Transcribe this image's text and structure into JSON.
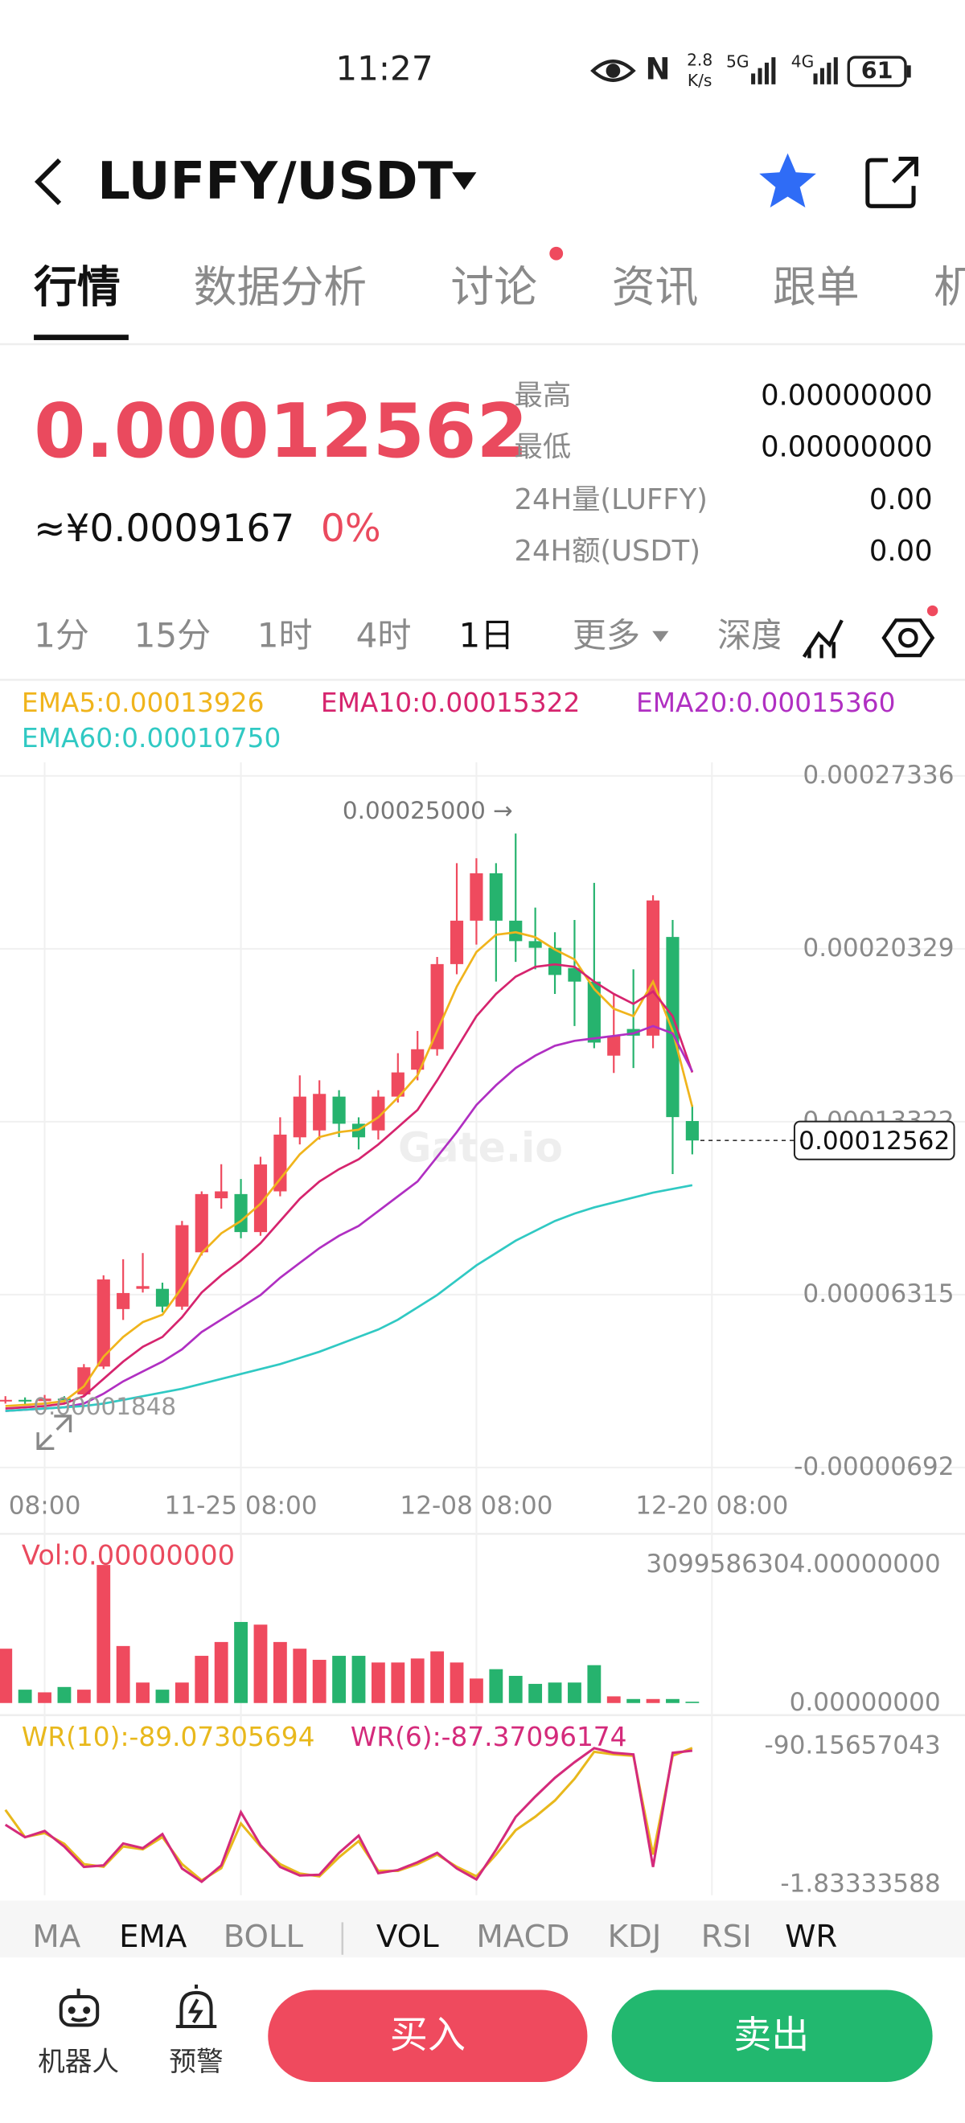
{
  "status_bar": {
    "time": "11:27",
    "speed_value": "2.8",
    "speed_unit": "K/s",
    "network_5g": "5G",
    "network_4g": "4G",
    "battery": "61"
  },
  "header": {
    "title": "LUFFY/USDT"
  },
  "tabs": [
    "行情",
    "数据分析",
    "讨论",
    "资讯",
    "跟单",
    "机"
  ],
  "ticker": {
    "price": "0.00012562",
    "cny_price": "≈¥0.0009167",
    "change": "0%",
    "stats": [
      {
        "label": "最高",
        "value": "0.00000000"
      },
      {
        "label": "最低",
        "value": "0.00000000"
      },
      {
        "label": "24H量(LUFFY)",
        "value": "0.00"
      },
      {
        "label": "24H额(USDT)",
        "value": "0.00"
      }
    ]
  },
  "intervals": [
    "1分",
    "15分",
    "1时",
    "4时",
    "1日",
    "更多",
    "深度"
  ],
  "chart_data": [
    {
      "type": "candlestick",
      "watermark": "Gate.io",
      "up_color": "#ef4a5e",
      "down_color": "#26b36e",
      "grid": true,
      "categories": [
        null,
        null,
        "08:00",
        null,
        null,
        null,
        null,
        null,
        null,
        null,
        null,
        null,
        "11-25 08:00",
        null,
        null,
        null,
        null,
        null,
        null,
        null,
        null,
        null,
        null,
        null,
        "12-08 08:00",
        null,
        null,
        null,
        null,
        null,
        null,
        null,
        null,
        null,
        null,
        null,
        "12-20 08:00",
        null
      ],
      "open": [
        2e-05,
        2.05e-05,
        2e-05,
        2.1e-05,
        2.27e-05,
        3.4e-05,
        5.73e-05,
        6.55e-05,
        6.55e-05,
        5.83e-05,
        8.03e-05,
        0.0001022,
        0.0001039,
        8.85e-05,
        0.000105,
        0.0001269,
        0.0001297,
        0.0001434,
        0.0001324,
        0.0001297,
        0.0001434,
        0.0001543,
        0.0001626,
        0.0001971,
        0.0002147,
        0.0002339,
        0.0002147,
        0.0002064,
        0.0002037,
        0.0001955,
        0.00019,
        0.00016,
        0.0001708,
        0.0001681,
        0.0002081,
        0.0001335,
        null,
        null
      ],
      "high": [
        2.2e-05,
        2.15e-05,
        2.25e-05,
        2.2e-05,
        3.5e-05,
        7.1e-05,
        7.75e-05,
        8e-05,
        6.8e-05,
        9.3e-05,
        0.000105,
        0.000116,
        0.00011,
        0.000119,
        0.000135,
        0.000152,
        0.00015,
        0.000146,
        0.000135,
        0.000146,
        0.000161,
        0.00017,
        0.0002,
        0.000238,
        0.00024,
        0.000238,
        0.00025,
        0.00022,
        0.00021,
        0.000215,
        0.00023,
        0.000185,
        0.000195,
        0.000225,
        0.000215,
        0.00014,
        null,
        null
      ],
      "low": [
        1.9e-05,
        1.848e-05,
        1.95e-05,
        1.95e-05,
        2.2e-05,
        3.3e-05,
        5.29e-05,
        6.4e-05,
        5.6e-05,
        5.7e-05,
        7.9e-05,
        9.8e-05,
        8.6e-05,
        8.7e-05,
        0.000103,
        0.000124,
        0.000126,
        0.000127,
        0.000122,
        0.000126,
        0.000141,
        0.00015,
        0.00016,
        0.000193,
        0.000205,
        0.00019,
        0.000198,
        0.000195,
        0.000185,
        0.000172,
        0.000163,
        0.000153,
        0.000155,
        0.000163,
        0.000112,
        0.00012,
        null,
        null
      ],
      "close": [
        2.05e-05,
        2e-05,
        2.1e-05,
        2.05e-05,
        3.37e-05,
        6.93e-05,
        6.38e-05,
        6.66e-05,
        5.83e-05,
        9.13e-05,
        0.0001039,
        0.000105,
        8.85e-05,
        0.0001159,
        0.000128,
        0.0001434,
        0.0001445,
        0.0001324,
        0.0001269,
        0.0001434,
        0.0001532,
        0.0001626,
        0.0001971,
        0.0002147,
        0.0002339,
        0.0002147,
        0.0002064,
        0.0002037,
        0.0001927,
        0.00019,
        0.0001653,
        0.0001681,
        0.0001681,
        0.0002229,
        0.0001351,
        0.00012562,
        null,
        null
      ],
      "series": [
        {
          "name": "EMA5:0.00013926",
          "color": "#f0b41c",
          "values": [
            1.8e-05,
            1.85e-05,
            1.9e-05,
            2e-05,
            2.6e-05,
            3.8e-05,
            4.6e-05,
            5.2e-05,
            5.5e-05,
            6.6e-05,
            8e-05,
            8.8e-05,
            9.3e-05,
            0.0001,
            0.00011,
            0.00012,
            0.000127,
            0.000129,
            0.00013,
            0.000135,
            0.000143,
            0.000152,
            0.00017,
            0.000188,
            0.000202,
            0.000209,
            0.00021,
            0.000208,
            0.000203,
            0.000199,
            0.000187,
            0.000179,
            0.000176,
            0.00019,
            0.00017,
            0.00013926,
            null,
            null
          ]
        },
        {
          "name": "EMA10:0.00015322",
          "color": "#d6246e",
          "values": [
            1.7e-05,
            1.75e-05,
            1.8e-05,
            1.9e-05,
            2.2e-05,
            2.9e-05,
            3.6e-05,
            4.2e-05,
            4.6e-05,
            5.4e-05,
            6.4e-05,
            7.1e-05,
            7.7e-05,
            8.4e-05,
            9.3e-05,
            0.000102,
            0.000109,
            0.000114,
            0.000118,
            0.000124,
            0.000131,
            0.000138,
            0.00015,
            0.000163,
            0.000176,
            0.000185,
            0.000192,
            0.000196,
            0.000197,
            0.000196,
            0.00019,
            0.000185,
            0.000181,
            0.000186,
            0.000176,
            0.00015322,
            null,
            null
          ]
        },
        {
          "name": "EMA20:0.00015360",
          "color": "#b02fc2",
          "values": [
            1.6e-05,
            1.65e-05,
            1.7e-05,
            1.75e-05,
            1.9e-05,
            2.3e-05,
            2.8e-05,
            3.2e-05,
            3.6e-05,
            4.1e-05,
            4.8e-05,
            5.3e-05,
            5.8e-05,
            6.3e-05,
            7e-05,
            7.6e-05,
            8.2e-05,
            8.7e-05,
            9.1e-05,
            9.7e-05,
            0.000103,
            0.000109,
            0.000119,
            0.000129,
            0.00014,
            0.000148,
            0.000155,
            0.00016,
            0.000164,
            0.000166,
            0.000167,
            0.000168,
            0.000169,
            0.000172,
            0.000169,
            0.0001536,
            null,
            null
          ]
        },
        {
          "name": "EMA60:0.00010750",
          "color": "#30c9c3",
          "values": [
            1.6e-05,
            1.65e-05,
            1.7e-05,
            1.75e-05,
            1.8e-05,
            1.9e-05,
            2.05e-05,
            2.2e-05,
            2.35e-05,
            2.5e-05,
            2.7e-05,
            2.9e-05,
            3.1e-05,
            3.3e-05,
            3.5e-05,
            3.75e-05,
            4e-05,
            4.3e-05,
            4.6e-05,
            4.9e-05,
            5.3e-05,
            5.8e-05,
            6.3e-05,
            6.9e-05,
            7.5e-05,
            8e-05,
            8.5e-05,
            8.9e-05,
            9.3e-05,
            9.6e-05,
            9.85e-05,
            0.0001005,
            0.0001025,
            0.0001045,
            0.000106,
            0.0001075,
            null,
            null
          ]
        }
      ],
      "ylim": [
        -6.92e-06,
        0.00027336
      ],
      "yticks": [
        0.00027336,
        0.00020329,
        0.00013322,
        6.315e-05,
        -6.92e-06
      ],
      "max_marker": {
        "value": 0.00025,
        "label": "0.00025000 →"
      },
      "min_marker": {
        "value": 1.848e-05,
        "label": "0.00001848"
      }
    },
    {
      "type": "bar",
      "label": "Vol:0.00000000",
      "values": [
        1220000000,
        300000000,
        240000000,
        360000000,
        300000000,
        3099586304,
        1280000000,
        460000000,
        300000000,
        460000000,
        1060000000,
        1370000000,
        1820000000,
        1760000000,
        1370000000,
        1220000000,
        970000000,
        1060000000,
        1060000000,
        910000000,
        910000000,
        1000000000,
        1160000000,
        910000000,
        550000000,
        760000000,
        610000000,
        430000000,
        460000000,
        460000000,
        850000000,
        150000000,
        90000000,
        90000000,
        90000000,
        30000000
      ],
      "ylim": [
        0,
        3099586304
      ],
      "yticks": [
        {
          "value": 3099586304,
          "label": "3099586304.00000000"
        },
        {
          "value": 0,
          "label": "0.00000000"
        }
      ]
    },
    {
      "type": "line",
      "series": [
        {
          "name": "WR(10):-89.07305694",
          "color": "#e8b81c",
          "values": [
            -49.5,
            -32.1,
            -34.7,
            -27.8,
            -14.8,
            -13.1,
            -26.1,
            -24.3,
            -32.1,
            -14.8,
            -4.4,
            -12.2,
            -40.8,
            -26.1,
            -14.8,
            -8.8,
            -7.0,
            -19.2,
            -29.5,
            -10.5,
            -10.5,
            -14.8,
            -20.9,
            -13.1,
            -7.0,
            -20.9,
            -36.5,
            -45.1,
            -55.5,
            -69.4,
            -86.7,
            -85.0,
            -84.1,
            -20.9,
            -84.1,
            -89.07305694
          ]
        },
        {
          "name": "WR(6):-87.37096174",
          "color": "#d42a7b",
          "values": [
            -40.0,
            -32.0,
            -36.0,
            -26.0,
            -13.0,
            -14.0,
            -28.0,
            -25.0,
            -34.0,
            -12.0,
            -3.5,
            -14.0,
            -48.0,
            -27.0,
            -13.0,
            -7.5,
            -8.0,
            -22.0,
            -33.0,
            -9.0,
            -11.0,
            -16.0,
            -22.0,
            -12.0,
            -5.0,
            -24.0,
            -45.0,
            -58.0,
            -70.0,
            -80.0,
            -89.0,
            -86.0,
            -85.0,
            -13.0,
            -86.0,
            -87.37096174
          ]
        }
      ],
      "ylim": [
        -90.15657043,
        -1.83333588
      ],
      "yticks": [
        -1.83333588,
        -90.15657043
      ]
    }
  ],
  "indicator_tabs": [
    "MA",
    "EMA",
    "BOLL",
    "VOL",
    "MACD",
    "KDJ",
    "RSI",
    "WR"
  ],
  "footer": {
    "robot": "机器人",
    "alert": "预警",
    "buy": "买入",
    "sell": "卖出"
  }
}
